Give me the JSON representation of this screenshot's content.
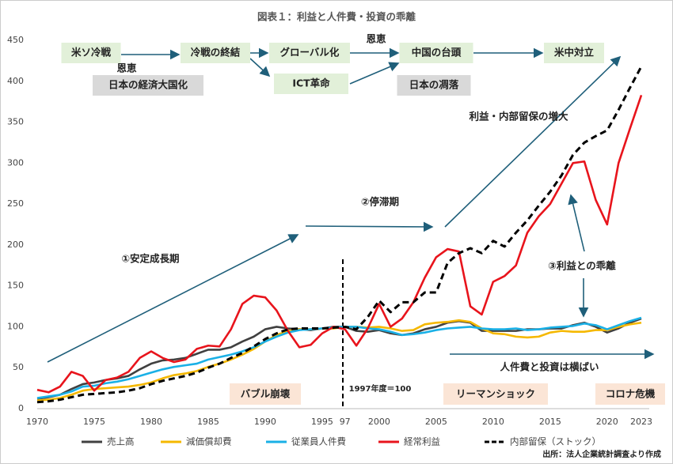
{
  "chart_data": {
    "type": "line",
    "title": "図表１：利益と人件費・投資の乖離",
    "x": [
      1970,
      1971,
      1972,
      1973,
      1974,
      1975,
      1976,
      1977,
      1978,
      1979,
      1980,
      1981,
      1982,
      1983,
      1984,
      1985,
      1986,
      1987,
      1988,
      1989,
      1990,
      1991,
      1992,
      1993,
      1994,
      1995,
      1996,
      1997,
      1998,
      1999,
      2000,
      2001,
      2002,
      2003,
      2004,
      2005,
      2006,
      2007,
      2008,
      2009,
      2010,
      2011,
      2012,
      2013,
      2014,
      2015,
      2016,
      2017,
      2018,
      2019,
      2020,
      2021,
      2022,
      2023
    ],
    "xlim": [
      1970,
      2023
    ],
    "xticks": [
      1970,
      1975,
      1980,
      1985,
      1990,
      1995,
      {
        "value": 1997,
        "label": "97"
      },
      2000,
      2005,
      2010,
      2015,
      2020,
      2023
    ],
    "ylim": [
      0,
      450
    ],
    "yticks": [
      0,
      50,
      100,
      150,
      200,
      250,
      300,
      350,
      400,
      450
    ],
    "series": [
      {
        "name": "売上高",
        "color": "#404040",
        "values": [
          12,
          14,
          17,
          24,
          30,
          32,
          35,
          37,
          40,
          48,
          55,
          59,
          60,
          62,
          67,
          72,
          72,
          75,
          82,
          88,
          97,
          100,
          98,
          97,
          96,
          98,
          100,
          100,
          95,
          94,
          96,
          92,
          90,
          92,
          97,
          100,
          105,
          107,
          105,
          95,
          95,
          95,
          95,
          97,
          97,
          98,
          98,
          102,
          105,
          100,
          93,
          98,
          105,
          110
        ]
      },
      {
        "name": "減価償却費",
        "color": "#f5b800",
        "values": [
          10,
          11,
          13,
          17,
          22,
          24,
          25,
          26,
          27,
          29,
          32,
          37,
          41,
          43,
          46,
          51,
          55,
          60,
          66,
          73,
          82,
          90,
          95,
          97,
          97,
          98,
          98,
          100,
          100,
          99,
          100,
          98,
          95,
          96,
          103,
          105,
          106,
          108,
          106,
          98,
          92,
          91,
          88,
          87,
          88,
          93,
          95,
          94,
          94,
          96,
          96,
          100,
          103,
          105
        ]
      },
      {
        "name": "従業員人件費",
        "color": "#1ab0e6",
        "values": [
          13,
          15,
          17,
          21,
          27,
          28,
          31,
          33,
          36,
          40,
          44,
          48,
          51,
          53,
          55,
          60,
          63,
          66,
          70,
          75,
          82,
          88,
          93,
          96,
          97,
          98,
          99,
          100,
          100,
          98,
          97,
          94,
          90,
          91,
          93,
          96,
          98,
          99,
          100,
          98,
          97,
          97,
          98,
          96,
          97,
          99,
          100,
          101,
          104,
          102,
          97,
          102,
          107,
          111
        ]
      },
      {
        "name": "経常利益",
        "color": "#e8141c",
        "values": [
          23,
          20,
          27,
          45,
          40,
          22,
          35,
          38,
          45,
          62,
          70,
          62,
          57,
          60,
          73,
          77,
          76,
          97,
          128,
          138,
          136,
          120,
          95,
          75,
          78,
          92,
          100,
          97,
          77,
          98,
          128,
          100,
          110,
          130,
          160,
          185,
          195,
          192,
          125,
          115,
          155,
          162,
          175,
          215,
          235,
          250,
          275,
          300,
          302,
          255,
          225,
          300,
          342,
          383
        ]
      },
      {
        "name": "内部留保（ストック）",
        "color": "#000000",
        "dashed": true,
        "values": [
          8,
          9,
          11,
          14,
          17,
          18,
          19,
          20,
          22,
          25,
          30,
          34,
          37,
          40,
          44,
          50,
          55,
          62,
          68,
          76,
          85,
          92,
          97,
          98,
          98,
          98,
          99,
          100,
          97,
          112,
          132,
          118,
          130,
          130,
          142,
          142,
          178,
          190,
          196,
          190,
          205,
          198,
          215,
          230,
          248,
          265,
          285,
          310,
          325,
          333,
          340,
          365,
          392,
          418
        ]
      }
    ],
    "timeline": [
      "米ソ冷戦",
      "恩恵",
      "日本の経済大国化",
      "冷戦の終結",
      "グローバル化",
      "ICT革命",
      "恩恵",
      "中国の台頭",
      "日本の凋落",
      "米中対立"
    ],
    "notes": [
      "利益・内部留保の増大",
      "②停滞期",
      "①安定成長期",
      "③利益との乖離",
      "人件費と投資は横ばい",
      "1997年度＝100"
    ],
    "events": [
      "バブル崩壊",
      "リーマンショック",
      "コロナ危機"
    ],
    "source": "出所：法人企業統計調査より作成"
  }
}
